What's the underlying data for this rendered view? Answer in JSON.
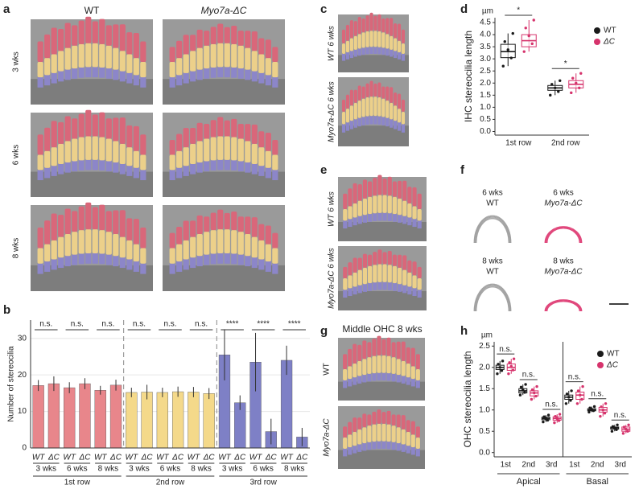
{
  "panel_labels": [
    "a",
    "b",
    "c",
    "d",
    "e",
    "f",
    "g",
    "h"
  ],
  "panel_a": {
    "columns": [
      "WT",
      "Myo7a-ΔC"
    ],
    "rows": [
      "3 wks",
      "6 wks",
      "8 wks"
    ]
  },
  "panel_c": {
    "images": [
      "WT 6 wks",
      "Myo7a-ΔC 6 wks"
    ]
  },
  "panel_e": {
    "images": [
      "WT 6 wks",
      "Myo7a-ΔC 6 wks"
    ]
  },
  "panel_f": {
    "items": [
      {
        "age": "6 wks",
        "genotype": "WT"
      },
      {
        "age": "6 wks",
        "genotype": "Myo7a-ΔC"
      },
      {
        "age": "8 wks",
        "genotype": "WT"
      },
      {
        "age": "8 wks",
        "genotype": "Myo7a-ΔC"
      }
    ]
  },
  "panel_g": {
    "title": "Middle OHC 8 wks",
    "images": [
      "WT",
      "Myo7a-ΔC"
    ]
  },
  "chart_data": [
    {
      "type": "bar",
      "y_label": "Number of stereocilia",
      "categories": [
        "WT",
        "ΔC",
        "WT",
        "ΔC",
        "WT",
        "ΔC",
        "WT",
        "ΔC",
        "WT",
        "ΔC",
        "WT",
        "ΔC",
        "WT",
        "ΔC",
        "WT",
        "ΔC",
        "WT",
        "ΔC"
      ],
      "ages": [
        "3 wks",
        "6 wks",
        "8 wks",
        "3 wks",
        "6 wks",
        "8 wks",
        "3 wks",
        "6 wks",
        "8 wks"
      ],
      "groups": [
        {
          "name": "1st row",
          "color": "#e8868b"
        },
        {
          "name": "2nd row",
          "color": "#f4d98a"
        },
        {
          "name": "3rd row",
          "color": "#7e80c6"
        }
      ],
      "values": [
        17.1,
        17.6,
        16.5,
        17.6,
        15.8,
        17.2,
        15.2,
        15.3,
        15.2,
        15.4,
        15.3,
        14.9,
        25.5,
        12.4,
        23.5,
        4.5,
        24,
        3
      ],
      "errors": [
        1.5,
        2,
        1.5,
        1.5,
        1.2,
        1.5,
        1.3,
        2,
        1.3,
        1.4,
        1.4,
        1.5,
        7,
        2,
        8,
        3.5,
        4,
        2.5
      ],
      "significance": [
        "n.s.",
        "n.s.",
        "n.s.",
        "n.s.",
        "n.s.",
        "n.s.",
        "****",
        "****",
        "****"
      ],
      "ylim": [
        0,
        35
      ],
      "yticks": [
        0,
        10,
        20,
        30
      ],
      "grid": true
    },
    {
      "type": "box",
      "y_label": "IHC stereocilia length",
      "unit": "µm",
      "categories": [
        "1st row",
        "2nd row"
      ],
      "series": [
        {
          "name": "WT",
          "color": "#1a1a1a",
          "boxes": [
            [
              2.7,
              3.05,
              3.3,
              3.6,
              4.05
            ],
            [
              1.5,
              1.7,
              1.8,
              1.9,
              2.1
            ]
          ]
        },
        {
          "name": "ΔC",
          "color": "#d6336c",
          "boxes": [
            [
              3.3,
              3.5,
              3.75,
              4.0,
              4.6
            ],
            [
              1.6,
              1.8,
              1.95,
              2.1,
              2.4
            ]
          ]
        }
      ],
      "significance": [
        "*",
        "*"
      ],
      "ylim": [
        -0.15,
        4.7
      ],
      "yticks": [
        {
          "value": 0,
          "label": "0.0"
        },
        0.5,
        {
          "value": 1,
          "label": "1.0"
        },
        1.5,
        {
          "value": 2,
          "label": "2.0"
        },
        2.5,
        {
          "value": 3,
          "label": "3.0"
        },
        3.5,
        {
          "value": 4,
          "label": "4.0"
        },
        4.5
      ],
      "grid": false,
      "legend": "top-right"
    },
    {
      "type": "box",
      "y_label": "OHC stereocilia length",
      "unit": "µm",
      "panels": [
        "Apical",
        "Basal"
      ],
      "categories": [
        "1st",
        "2nd",
        "3rd"
      ],
      "series": [
        {
          "name": "WT",
          "color": "#1a1a1a",
          "boxes": [
            [
              1.85,
              1.95,
              2.0,
              2.05,
              2.15
            ],
            [
              1.35,
              1.4,
              1.45,
              1.5,
              1.6
            ],
            [
              0.72,
              0.77,
              0.8,
              0.83,
              0.88
            ],
            [
              1.15,
              1.25,
              1.3,
              1.35,
              1.45
            ],
            [
              0.95,
              0.98,
              1.0,
              1.03,
              1.08
            ],
            [
              0.5,
              0.55,
              0.58,
              0.6,
              0.65
            ]
          ]
        },
        {
          "name": "ΔC",
          "color": "#d6336c",
          "boxes": [
            [
              1.85,
              1.93,
              2.0,
              2.08,
              2.2
            ],
            [
              1.25,
              1.33,
              1.4,
              1.45,
              1.55
            ],
            [
              0.7,
              0.76,
              0.8,
              0.84,
              0.9
            ],
            [
              1.15,
              1.25,
              1.35,
              1.42,
              1.55
            ],
            [
              0.85,
              0.95,
              1.0,
              1.06,
              1.15
            ],
            [
              0.45,
              0.5,
              0.55,
              0.6,
              0.65
            ]
          ]
        }
      ],
      "significance": [
        "n.s.",
        "n.s.",
        "n.s.",
        "n.s.",
        "n.s.",
        "n.s."
      ],
      "ylim": [
        -0.1,
        2.6
      ],
      "yticks": [
        {
          "value": 0,
          "label": "0.0"
        },
        0.5,
        {
          "value": 1,
          "label": "1.0"
        },
        1.5,
        {
          "value": 2,
          "label": "2.0"
        },
        2.5
      ],
      "grid": false,
      "legend": "top-right"
    }
  ]
}
